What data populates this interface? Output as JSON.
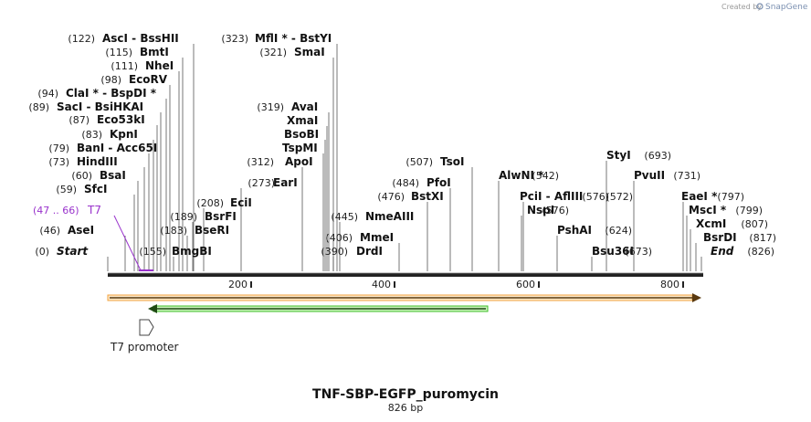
{
  "credit": {
    "text": "Created by",
    "brand": "SnapGene"
  },
  "title": "TNF-SBP-EGFP_puromycin",
  "subtitle": "826 bp",
  "sequence_length": 826,
  "ticks": [
    "200",
    "400",
    "600",
    "800"
  ],
  "promoter": {
    "label": "T7 promoter",
    "range": "(47 .. 66)",
    "name": "T7"
  },
  "colors": {
    "feature_orange": "#f2a340",
    "feature_green": "#3fbf2a",
    "promoter_purple": "#9933cc",
    "line": "#444444"
  },
  "left_labels": [
    {
      "pos": "(122)",
      "text": "AscI  -  BssHII"
    },
    {
      "pos": "(115)",
      "text": "BmtI"
    },
    {
      "pos": "(111)",
      "text": "NheI"
    },
    {
      "pos": "(98)",
      "text": "EcoRV"
    },
    {
      "pos": "(94)",
      "text": "ClaI *  -  BspDI *"
    },
    {
      "pos": "(89)",
      "text": "SacI  -  BsiHKAI"
    },
    {
      "pos": "(87)",
      "text": "Eco53kI"
    },
    {
      "pos": "(83)",
      "text": "KpnI"
    },
    {
      "pos": "(79)",
      "text": "BanI  -  Acc65I"
    },
    {
      "pos": "(73)",
      "text": "HindIII"
    },
    {
      "pos": "(60)",
      "text": "BsaI"
    },
    {
      "pos": "(59)",
      "text": "SfcI"
    },
    {
      "pos": "(46)",
      "text": "AseI"
    },
    {
      "pos": "(0)",
      "text": "Start"
    }
  ],
  "mid_labels": [
    {
      "pos": "(208)",
      "text": "EciI"
    },
    {
      "pos": "(189)",
      "text": "BsrFI"
    },
    {
      "pos": "(183)",
      "text": "BseRI"
    },
    {
      "pos": "(155)",
      "text": "BmgBI"
    },
    {
      "pos": "(273)",
      "text": "EarI"
    },
    {
      "pos": "(312)",
      "text": "ApoI"
    },
    {
      "pos": "(323)",
      "text": "MflI *  -  BstYI"
    },
    {
      "pos": "(321)",
      "text": "SmaI"
    },
    {
      "pos": "(319)",
      "text": "AvaI"
    },
    {
      "pos": "",
      "text": "XmaI"
    },
    {
      "pos": "",
      "text": "BsoBI"
    },
    {
      "pos": "",
      "text": "TspMI"
    },
    {
      "pos": "(445)",
      "text": "NmeAIII"
    },
    {
      "pos": "(406)",
      "text": "MmeI"
    },
    {
      "pos": "(390)",
      "text": "DrdI"
    },
    {
      "pos": "(507)",
      "text": "TsoI"
    },
    {
      "pos": "(484)",
      "text": "PfoI"
    },
    {
      "pos": "(476)",
      "text": "BstXI"
    }
  ],
  "right_labels": [
    {
      "pos": "(542)",
      "text": "AlwNI *"
    },
    {
      "pos": "(576)",
      "text": "PciI  -  AflIII"
    },
    {
      "pos": "(576)",
      "text": "NspI"
    },
    {
      "pos": "(624)",
      "text": "PshAI"
    },
    {
      "pos": "(673)",
      "text": "Bsu36I"
    },
    {
      "pos": "(693)",
      "text": "StyI"
    },
    {
      "pos": "(731)",
      "text": "PvuII"
    },
    {
      "pos": "(572)",
      "text": ""
    },
    {
      "pos": "(797)",
      "text": "EaeI *"
    },
    {
      "pos": "(799)",
      "text": "MscI *"
    },
    {
      "pos": "(807)",
      "text": "XcmI"
    },
    {
      "pos": "(817)",
      "text": "BsrDI"
    },
    {
      "pos": "(826)",
      "text": "End"
    }
  ]
}
